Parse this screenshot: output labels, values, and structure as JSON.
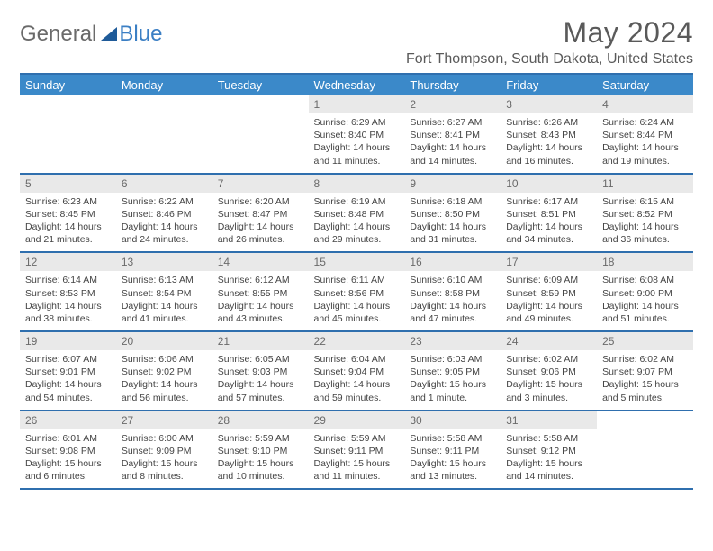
{
  "logo": {
    "word1": "General",
    "word2": "Blue"
  },
  "title": "May 2024",
  "location": "Fort Thompson, South Dakota, United States",
  "day_headers": [
    "Sunday",
    "Monday",
    "Tuesday",
    "Wednesday",
    "Thursday",
    "Friday",
    "Saturday"
  ],
  "colors": {
    "header_bg": "#3b89c9",
    "rule": "#2f6fae",
    "daynum_bg": "#e9e9e9",
    "text": "#444444"
  },
  "weeks": [
    [
      {
        "blank": true
      },
      {
        "blank": true
      },
      {
        "blank": true
      },
      {
        "n": "1",
        "sunrise": "6:29 AM",
        "sunset": "8:40 PM",
        "daylight": "14 hours and 11 minutes."
      },
      {
        "n": "2",
        "sunrise": "6:27 AM",
        "sunset": "8:41 PM",
        "daylight": "14 hours and 14 minutes."
      },
      {
        "n": "3",
        "sunrise": "6:26 AM",
        "sunset": "8:43 PM",
        "daylight": "14 hours and 16 minutes."
      },
      {
        "n": "4",
        "sunrise": "6:24 AM",
        "sunset": "8:44 PM",
        "daylight": "14 hours and 19 minutes."
      }
    ],
    [
      {
        "n": "5",
        "sunrise": "6:23 AM",
        "sunset": "8:45 PM",
        "daylight": "14 hours and 21 minutes."
      },
      {
        "n": "6",
        "sunrise": "6:22 AM",
        "sunset": "8:46 PM",
        "daylight": "14 hours and 24 minutes."
      },
      {
        "n": "7",
        "sunrise": "6:20 AM",
        "sunset": "8:47 PM",
        "daylight": "14 hours and 26 minutes."
      },
      {
        "n": "8",
        "sunrise": "6:19 AM",
        "sunset": "8:48 PM",
        "daylight": "14 hours and 29 minutes."
      },
      {
        "n": "9",
        "sunrise": "6:18 AM",
        "sunset": "8:50 PM",
        "daylight": "14 hours and 31 minutes."
      },
      {
        "n": "10",
        "sunrise": "6:17 AM",
        "sunset": "8:51 PM",
        "daylight": "14 hours and 34 minutes."
      },
      {
        "n": "11",
        "sunrise": "6:15 AM",
        "sunset": "8:52 PM",
        "daylight": "14 hours and 36 minutes."
      }
    ],
    [
      {
        "n": "12",
        "sunrise": "6:14 AM",
        "sunset": "8:53 PM",
        "daylight": "14 hours and 38 minutes."
      },
      {
        "n": "13",
        "sunrise": "6:13 AM",
        "sunset": "8:54 PM",
        "daylight": "14 hours and 41 minutes."
      },
      {
        "n": "14",
        "sunrise": "6:12 AM",
        "sunset": "8:55 PM",
        "daylight": "14 hours and 43 minutes."
      },
      {
        "n": "15",
        "sunrise": "6:11 AM",
        "sunset": "8:56 PM",
        "daylight": "14 hours and 45 minutes."
      },
      {
        "n": "16",
        "sunrise": "6:10 AM",
        "sunset": "8:58 PM",
        "daylight": "14 hours and 47 minutes."
      },
      {
        "n": "17",
        "sunrise": "6:09 AM",
        "sunset": "8:59 PM",
        "daylight": "14 hours and 49 minutes."
      },
      {
        "n": "18",
        "sunrise": "6:08 AM",
        "sunset": "9:00 PM",
        "daylight": "14 hours and 51 minutes."
      }
    ],
    [
      {
        "n": "19",
        "sunrise": "6:07 AM",
        "sunset": "9:01 PM",
        "daylight": "14 hours and 54 minutes."
      },
      {
        "n": "20",
        "sunrise": "6:06 AM",
        "sunset": "9:02 PM",
        "daylight": "14 hours and 56 minutes."
      },
      {
        "n": "21",
        "sunrise": "6:05 AM",
        "sunset": "9:03 PM",
        "daylight": "14 hours and 57 minutes."
      },
      {
        "n": "22",
        "sunrise": "6:04 AM",
        "sunset": "9:04 PM",
        "daylight": "14 hours and 59 minutes."
      },
      {
        "n": "23",
        "sunrise": "6:03 AM",
        "sunset": "9:05 PM",
        "daylight": "15 hours and 1 minute."
      },
      {
        "n": "24",
        "sunrise": "6:02 AM",
        "sunset": "9:06 PM",
        "daylight": "15 hours and 3 minutes."
      },
      {
        "n": "25",
        "sunrise": "6:02 AM",
        "sunset": "9:07 PM",
        "daylight": "15 hours and 5 minutes."
      }
    ],
    [
      {
        "n": "26",
        "sunrise": "6:01 AM",
        "sunset": "9:08 PM",
        "daylight": "15 hours and 6 minutes."
      },
      {
        "n": "27",
        "sunrise": "6:00 AM",
        "sunset": "9:09 PM",
        "daylight": "15 hours and 8 minutes."
      },
      {
        "n": "28",
        "sunrise": "5:59 AM",
        "sunset": "9:10 PM",
        "daylight": "15 hours and 10 minutes."
      },
      {
        "n": "29",
        "sunrise": "5:59 AM",
        "sunset": "9:11 PM",
        "daylight": "15 hours and 11 minutes."
      },
      {
        "n": "30",
        "sunrise": "5:58 AM",
        "sunset": "9:11 PM",
        "daylight": "15 hours and 13 minutes."
      },
      {
        "n": "31",
        "sunrise": "5:58 AM",
        "sunset": "9:12 PM",
        "daylight": "15 hours and 14 minutes."
      },
      {
        "blank": true
      }
    ]
  ]
}
